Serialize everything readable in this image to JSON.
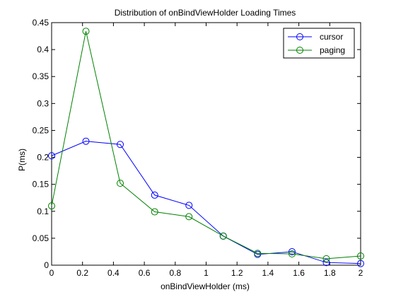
{
  "chart_data": {
    "type": "line",
    "title": "Distribution of onBindViewHolder Loading Times",
    "xlabel": "onBindViewHolder (ms)",
    "ylabel": "P(ms)",
    "xlim": [
      0,
      2
    ],
    "ylim": [
      0,
      0.45
    ],
    "xticks": [
      0,
      0.2,
      0.4,
      0.6,
      0.8,
      1,
      1.2,
      1.4,
      1.6,
      1.8,
      2
    ],
    "yticks": [
      0,
      0.05,
      0.1,
      0.15,
      0.2,
      0.25,
      0.3,
      0.35,
      0.4,
      0.45
    ],
    "x": [
      0,
      0.222,
      0.444,
      0.667,
      0.889,
      1.111,
      1.333,
      1.556,
      1.778,
      2.0
    ],
    "series": [
      {
        "name": "cursor",
        "color": "#0000ff",
        "marker": "circle",
        "values": [
          0.203,
          0.23,
          0.224,
          0.13,
          0.111,
          0.054,
          0.02,
          0.025,
          0.005,
          0.003
        ]
      },
      {
        "name": "paging",
        "color": "#008000",
        "marker": "circle",
        "values": [
          0.11,
          0.434,
          0.152,
          0.099,
          0.09,
          0.054,
          0.022,
          0.021,
          0.012,
          0.017
        ]
      }
    ],
    "legend": {
      "position": "top-right"
    },
    "grid": false
  }
}
